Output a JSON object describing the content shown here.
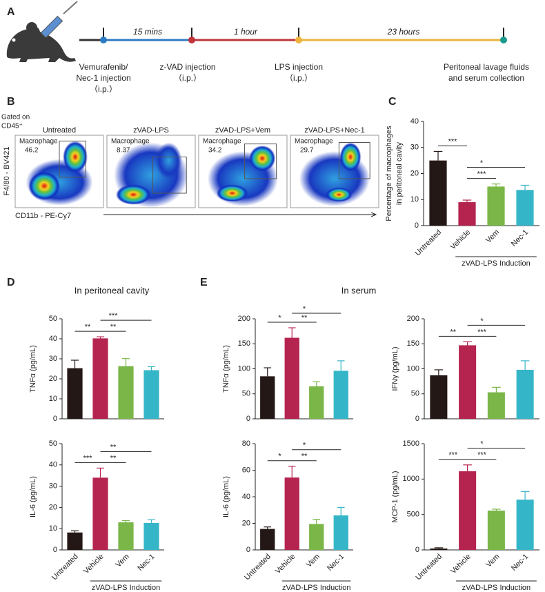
{
  "panel_letters": [
    "A",
    "B",
    "C",
    "D",
    "E"
  ],
  "timeline": {
    "intervals": [
      "15 mins",
      "1 hour",
      "23 hours"
    ],
    "events": [
      [
        "Vemurafenib/",
        "Nec-1 injection",
        "（i.p.）"
      ],
      [
        "z-VAD injection",
        "（i.p.）"
      ],
      [
        "LPS injection",
        "（i.p.）"
      ],
      [
        "Peritoneal lavage fluids",
        "and serum collection"
      ]
    ]
  },
  "flow": {
    "gate_note": [
      "Gated on",
      "CD45⁺"
    ],
    "y_axis": "F4/80 - BV421",
    "x_axis": "CD11b - PE-Cy7",
    "plots": [
      {
        "title": "Untreated",
        "gate": "Macrophage",
        "value": 46.2
      },
      {
        "title": "zVAD-LPS",
        "gate": "Macrophage",
        "value": 8.37
      },
      {
        "title": "zVAD-LPS+Vem",
        "gate": "Macrophage",
        "value": 34.2
      },
      {
        "title": "zVAD-LPS+Nec-1",
        "gate": "Macrophage",
        "value": 29.7
      }
    ]
  },
  "headings": [
    "In peritoneal cavity",
    "In serum"
  ],
  "chart_data": [
    {
      "type": "bar",
      "ylabel": [
        "Percentage of macrophages",
        "in peritoneal cavity"
      ],
      "categories": [
        "Untreated",
        "Vehicle",
        "Vem",
        "Nec-1"
      ],
      "values": [
        25,
        9,
        15,
        13.7
      ],
      "errors": [
        3.5,
        0.8,
        1,
        1.8
      ],
      "colors": [
        "#231815",
        "#b5244f",
        "#7ab648",
        "#35b6c8"
      ],
      "ylim": [
        0,
        40
      ],
      "yticks": [
        0,
        10,
        20,
        30,
        40
      ],
      "group_label": "zVAD-LPS Induction",
      "significance": [
        {
          "label": "***",
          "between": [
            0,
            1
          ]
        },
        {
          "label": "***",
          "between": [
            1,
            2
          ]
        },
        {
          "label": "*",
          "between": [
            1,
            3
          ]
        }
      ]
    },
    {
      "type": "bar",
      "ylabel": [
        "TNFα (pg/mL)"
      ],
      "categories": [
        null,
        null,
        null,
        null
      ],
      "values": [
        25.3,
        40.2,
        26.3,
        24.3
      ],
      "errors": [
        4,
        0.8,
        3.8,
        1.8
      ],
      "colors": [
        "#231815",
        "#b5244f",
        "#7ab648",
        "#35b6c8"
      ],
      "ylim": [
        0,
        50
      ],
      "yticks": [
        0,
        10,
        20,
        30,
        40,
        50
      ],
      "significance": [
        {
          "label": "**",
          "between": [
            0,
            1
          ]
        },
        {
          "label": "**",
          "between": [
            1,
            2
          ]
        },
        {
          "label": "***",
          "between": [
            1,
            3
          ]
        }
      ]
    },
    {
      "type": "bar",
      "ylabel": [
        "IL-6 (pg/mL)"
      ],
      "categories": [
        "Untreated",
        "Vehicle",
        "Vem",
        "Nec-1"
      ],
      "values": [
        8.2,
        34,
        13,
        12.7
      ],
      "errors": [
        0.8,
        4.5,
        0.8,
        1.5
      ],
      "colors": [
        "#231815",
        "#b5244f",
        "#7ab648",
        "#35b6c8"
      ],
      "ylim": [
        0,
        50
      ],
      "yticks": [
        0,
        10,
        20,
        30,
        40,
        50
      ],
      "group_label": "zVAD-LPS Induction",
      "significance": [
        {
          "label": "***",
          "between": [
            0,
            1
          ]
        },
        {
          "label": "**",
          "between": [
            1,
            2
          ]
        },
        {
          "label": "**",
          "between": [
            1,
            3
          ]
        }
      ]
    },
    {
      "type": "bar",
      "ylabel": [
        "TNFα (pg/mL)"
      ],
      "categories": [
        null,
        null,
        null,
        null
      ],
      "values": [
        85,
        162,
        65,
        96
      ],
      "errors": [
        17,
        20,
        9,
        20
      ],
      "colors": [
        "#231815",
        "#b5244f",
        "#7ab648",
        "#35b6c8"
      ],
      "ylim": [
        0,
        200
      ],
      "yticks": [
        0,
        50,
        100,
        150,
        200
      ],
      "significance": [
        {
          "label": "*",
          "between": [
            0,
            1
          ]
        },
        {
          "label": "**",
          "between": [
            1,
            2
          ]
        },
        {
          "label": "*",
          "between": [
            1,
            3
          ]
        }
      ]
    },
    {
      "type": "bar",
      "ylabel": [
        "IFNγ (pg/mL)"
      ],
      "categories": [
        null,
        null,
        null,
        null
      ],
      "values": [
        87,
        147,
        53,
        98
      ],
      "errors": [
        11,
        7,
        10,
        18
      ],
      "colors": [
        "#231815",
        "#b5244f",
        "#7ab648",
        "#35b6c8"
      ],
      "ylim": [
        0,
        200
      ],
      "yticks": [
        0,
        50,
        100,
        150,
        200
      ],
      "significance": [
        {
          "label": "**",
          "between": [
            0,
            1
          ]
        },
        {
          "label": "***",
          "between": [
            1,
            2
          ]
        },
        {
          "label": "*",
          "between": [
            1,
            3
          ]
        }
      ]
    },
    {
      "type": "bar",
      "ylabel": [
        "IL-6 (pg/mL)"
      ],
      "categories": [
        "Untreated",
        "Vehicle",
        "Vem",
        "Nec-1"
      ],
      "values": [
        15.8,
        54.5,
        19.5,
        26
      ],
      "errors": [
        1.5,
        8.5,
        3.5,
        6
      ],
      "colors": [
        "#231815",
        "#b5244f",
        "#7ab648",
        "#35b6c8"
      ],
      "ylim": [
        0,
        80
      ],
      "yticks": [
        0,
        20,
        40,
        60,
        80
      ],
      "group_label": "zVAD-LPS Induction",
      "significance": [
        {
          "label": "*",
          "between": [
            0,
            1
          ]
        },
        {
          "label": "**",
          "between": [
            1,
            2
          ]
        },
        {
          "label": "*",
          "between": [
            1,
            3
          ]
        }
      ]
    },
    {
      "type": "bar",
      "ylabel": [
        "MCP-1 (pg/mL)"
      ],
      "categories": [
        "Untreated",
        "Vehicle",
        "Vem",
        "Nec-1"
      ],
      "values": [
        20,
        1110,
        555,
        710
      ],
      "errors": [
        10,
        90,
        20,
        115
      ],
      "colors": [
        "#231815",
        "#b5244f",
        "#7ab648",
        "#35b6c8"
      ],
      "ylim": [
        0,
        1500
      ],
      "yticks": [
        0,
        500,
        1000,
        1500
      ],
      "group_label": "zVAD-LPS Induction",
      "significance": [
        {
          "label": "***",
          "between": [
            0,
            1
          ]
        },
        {
          "label": "***",
          "between": [
            1,
            2
          ]
        },
        {
          "label": "*",
          "between": [
            1,
            3
          ]
        }
      ]
    }
  ]
}
